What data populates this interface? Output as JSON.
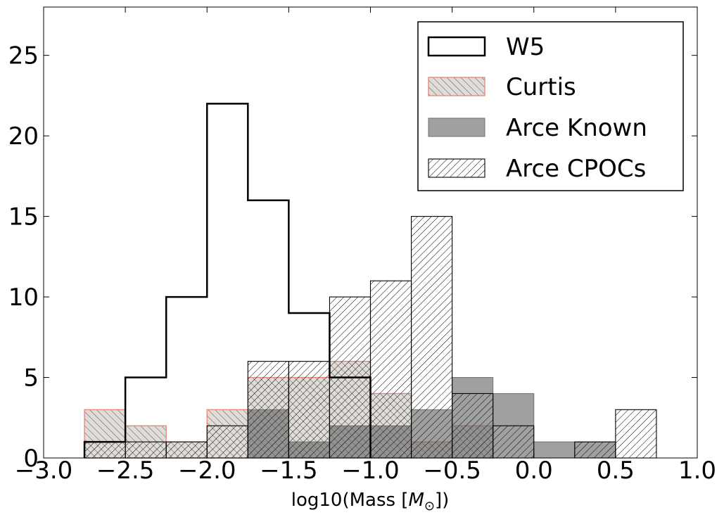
{
  "chart_data": {
    "type": "histogram",
    "title": "",
    "xlabel": "log10(Mass [",
    "xlabel_symbol": "M",
    "xlabel_subscript": "⊙",
    "xlabel_end": "])",
    "ylabel": "",
    "xlim": [
      -3.0,
      1.0
    ],
    "ylim": [
      0,
      28
    ],
    "xticks": [
      -3.0,
      -2.5,
      -2.0,
      -1.5,
      -1.0,
      -0.5,
      0.0,
      0.5,
      1.0
    ],
    "xtick_labels": [
      "−3.0",
      "−2.5",
      "−2.0",
      "−1.5",
      "−1.0",
      "−0.5",
      "0.0",
      "0.5",
      "1.0"
    ],
    "yticks": [
      0,
      5,
      10,
      15,
      20,
      25
    ],
    "ytick_labels": [
      "0",
      "5",
      "10",
      "15",
      "20",
      "25"
    ],
    "bin_edges": [
      -2.75,
      -2.5,
      -2.25,
      -2.0,
      -1.75,
      -1.5,
      -1.25,
      -1.0,
      -0.75,
      -0.5,
      -0.25,
      0.0,
      0.25,
      0.5,
      0.75
    ],
    "legend_position": "top-right",
    "series": [
      {
        "name": "W5",
        "style": "step",
        "color": "#000000",
        "values": [
          1,
          5,
          10,
          22,
          16,
          9,
          5,
          0,
          0,
          0,
          0,
          0,
          0,
          0
        ]
      },
      {
        "name": "Curtis",
        "style": "hatch-back",
        "color": "#e8837a",
        "fill": "#e0dcd8",
        "values": [
          3,
          2,
          1,
          3,
          5,
          5,
          6,
          4,
          1,
          2,
          0,
          0,
          0,
          0
        ]
      },
      {
        "name": "Arce Known",
        "style": "solid",
        "color": "#707070",
        "fill": "#606060",
        "values": [
          0,
          0,
          0,
          0,
          3,
          1,
          2,
          2,
          3,
          5,
          4,
          1,
          1,
          0
        ]
      },
      {
        "name": "Arce CPOCs",
        "style": "hatch-fwd",
        "color": "#000000",
        "values": [
          1,
          1,
          1,
          2,
          6,
          6,
          10,
          11,
          15,
          4,
          2,
          0,
          1,
          3
        ]
      }
    ]
  }
}
